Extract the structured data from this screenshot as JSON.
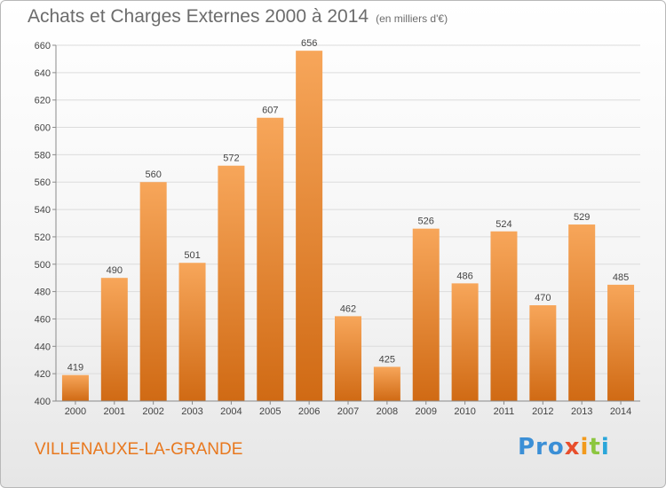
{
  "header": {
    "title": "Achats et Charges Externes 2000 à 2014",
    "unit": "(en milliers d'€)"
  },
  "footer": {
    "commune": "VILLENAUXE-LA-GRANDE",
    "logo_parts": [
      "Pro",
      "x",
      "i",
      "t",
      "i"
    ]
  },
  "chart_data": {
    "type": "bar",
    "title": "Achats et Charges Externes 2000 à 2014",
    "subtitle": "(en milliers d'€)",
    "categories": [
      "2000",
      "2001",
      "2002",
      "2003",
      "2004",
      "2005",
      "2006",
      "2007",
      "2008",
      "2009",
      "2010",
      "2011",
      "2012",
      "2013",
      "2014"
    ],
    "values": [
      419,
      490,
      560,
      501,
      572,
      607,
      656,
      462,
      425,
      526,
      486,
      524,
      470,
      529,
      485
    ],
    "ylim": [
      400,
      660
    ],
    "yticks": [
      400,
      420,
      440,
      460,
      480,
      500,
      520,
      540,
      560,
      580,
      600,
      620,
      640,
      660
    ],
    "grid": true,
    "colors": {
      "bar_light": "#f7a65a",
      "bar_dark": "#d06a14",
      "grid": "#dcdcdc",
      "axis": "#8a8a8a"
    }
  }
}
